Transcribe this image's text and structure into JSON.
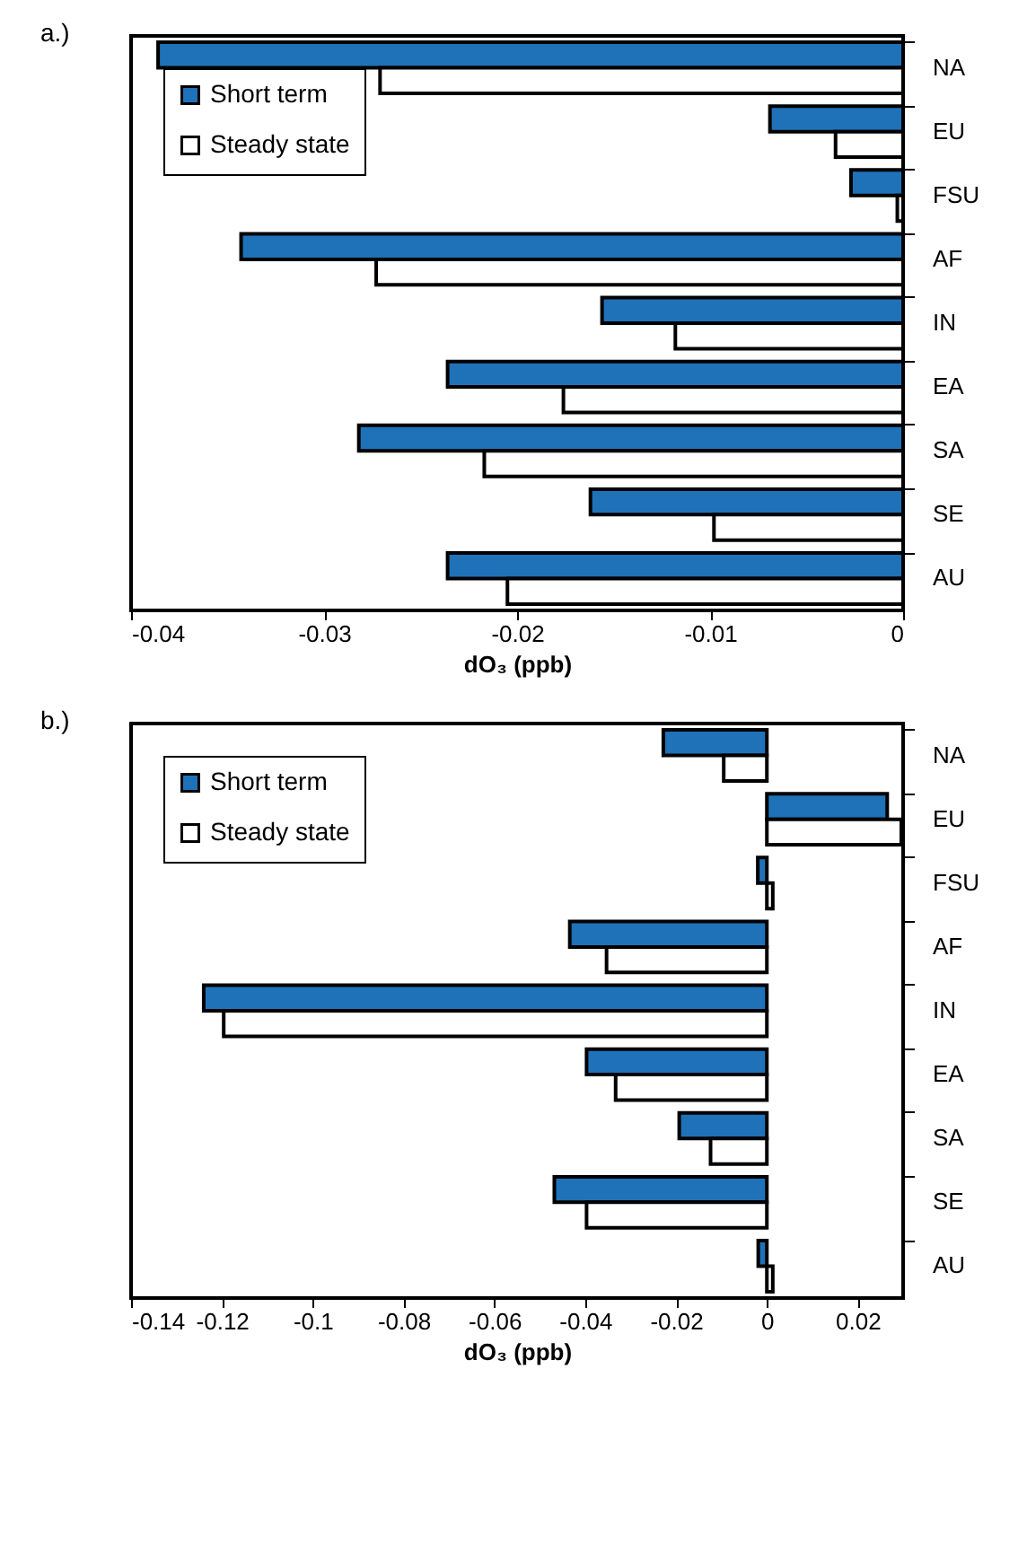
{
  "chart_data": [
    {
      "type": "bar",
      "title": "a.)",
      "orientation": "horizontal",
      "categories": [
        "NA",
        "EU",
        "FSU",
        "AF",
        "IN",
        "EA",
        "SA",
        "SE",
        "AU"
      ],
      "xlabel": "dO₃ (ppb)",
      "series": [
        {
          "name": "Short term",
          "color": "#1f72b8",
          "values": [
            -0.0386,
            -0.0069,
            -0.0027,
            -0.0343,
            -0.0156,
            -0.0236,
            -0.0282,
            -0.0162,
            -0.0236
          ]
        },
        {
          "name": "Steady state",
          "color": "#ffffff",
          "values": [
            -0.0271,
            -0.0035,
            -0.0003,
            -0.0273,
            -0.0118,
            -0.0176,
            -0.0217,
            -0.0098,
            -0.0205
          ]
        }
      ],
      "xlim": [
        -0.04,
        0
      ],
      "xticks": [
        -0.04,
        -0.03,
        -0.02,
        -0.01,
        0
      ],
      "grid": false,
      "legend": "top left"
    },
    {
      "type": "bar",
      "title": "b.)",
      "orientation": "horizontal",
      "categories": [
        "NA",
        "EU",
        "FSU",
        "AF",
        "IN",
        "EA",
        "SA",
        "SE",
        "AU"
      ],
      "xlabel": "dO₃ (ppb)",
      "series": [
        {
          "name": "Short term",
          "color": "#1f72b8",
          "values": [
            -0.0228,
            0.0265,
            -0.002,
            -0.0434,
            -0.124,
            -0.0397,
            -0.0193,
            -0.0468,
            -0.0019
          ]
        },
        {
          "name": "Steady state",
          "color": "#ffffff",
          "values": [
            -0.0095,
            0.0296,
            0.0013,
            -0.0353,
            -0.1196,
            -0.0333,
            -0.0124,
            -0.0397,
            0.0013
          ]
        }
      ],
      "xlim": [
        -0.14,
        0.03
      ],
      "xticks": [
        -0.14,
        -0.12,
        -0.1,
        -0.08,
        -0.06,
        -0.04,
        -0.02,
        0,
        0.02
      ],
      "grid": false,
      "legend": "top left"
    }
  ]
}
